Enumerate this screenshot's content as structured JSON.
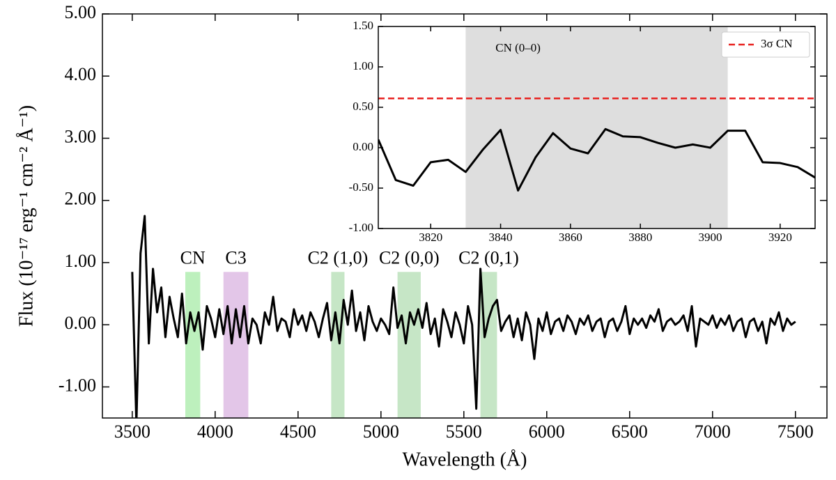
{
  "chart_data": [
    {
      "type": "line",
      "xlabel": "Wavelength (Å)",
      "ylabel": "Flux (10⁻¹⁷ erg⁻¹ cm⁻² Å⁻¹)",
      "xlim": [
        3320,
        7690
      ],
      "ylim": [
        -1.5,
        5.0
      ],
      "xticks": [
        3500,
        4000,
        4500,
        5000,
        5500,
        6000,
        6500,
        7000,
        7500
      ],
      "yticks": [
        {
          "value": -1,
          "label": "-1.00"
        },
        {
          "value": 0,
          "label": "0.00"
        },
        {
          "value": 1,
          "label": "1.00"
        },
        {
          "value": 2,
          "label": "2.00"
        },
        {
          "value": 3,
          "label": "3.00"
        },
        {
          "value": 4,
          "label": "4.00"
        },
        {
          "value": 5,
          "label": "5.00"
        }
      ],
      "bands": [
        {
          "label": "CN",
          "start": 3820,
          "end": 3910,
          "top": 0.85,
          "color": "#bdf0bd",
          "label_color": "#55d455"
        },
        {
          "label": "C3",
          "start": 4050,
          "end": 4200,
          "top": 0.85,
          "color": "#e3c6e8",
          "label_color": "#7a1a7a"
        },
        {
          "label": "C2 (1,0)",
          "start": 4700,
          "end": 4780,
          "top": 0.85,
          "color": "#c6e6c6",
          "label_color": "#1f7f1f"
        },
        {
          "label": "C2 (0,0)",
          "start": 5100,
          "end": 5240,
          "top": 0.85,
          "color": "#c6e6c6",
          "label_color": "#1f7f1f"
        },
        {
          "label": "C2 (0,1)",
          "start": 5600,
          "end": 5700,
          "top": 0.85,
          "color": "#c6e6c6",
          "label_color": "#1f7f1f"
        }
      ],
      "x": [
        3500,
        3525,
        3550,
        3575,
        3600,
        3625,
        3650,
        3675,
        3700,
        3725,
        3750,
        3775,
        3800,
        3825,
        3850,
        3875,
        3900,
        3925,
        3950,
        3975,
        4000,
        4025,
        4050,
        4075,
        4100,
        4125,
        4150,
        4175,
        4200,
        4225,
        4250,
        4275,
        4300,
        4325,
        4350,
        4375,
        4400,
        4425,
        4450,
        4475,
        4500,
        4525,
        4550,
        4575,
        4600,
        4625,
        4650,
        4675,
        4700,
        4725,
        4750,
        4775,
        4800,
        4825,
        4850,
        4875,
        4900,
        4925,
        4950,
        4975,
        5000,
        5025,
        5050,
        5075,
        5100,
        5125,
        5150,
        5175,
        5200,
        5225,
        5250,
        5275,
        5300,
        5325,
        5350,
        5375,
        5400,
        5425,
        5450,
        5475,
        5500,
        5525,
        5550,
        5575,
        5600,
        5625,
        5650,
        5675,
        5700,
        5725,
        5750,
        5775,
        5800,
        5825,
        5850,
        5875,
        5900,
        5925,
        5950,
        5975,
        6000,
        6025,
        6050,
        6075,
        6100,
        6125,
        6150,
        6175,
        6200,
        6225,
        6250,
        6275,
        6300,
        6325,
        6350,
        6375,
        6400,
        6425,
        6450,
        6475,
        6500,
        6525,
        6550,
        6575,
        6600,
        6625,
        6650,
        6675,
        6700,
        6725,
        6750,
        6775,
        6800,
        6825,
        6850,
        6875,
        6900,
        6925,
        6950,
        6975,
        7000,
        7025,
        7050,
        7075,
        7100,
        7125,
        7150,
        7175,
        7200,
        7225,
        7250,
        7275,
        7300,
        7325,
        7350,
        7375,
        7400,
        7425,
        7450,
        7475,
        7500
      ],
      "series": [
        {
          "color": "#000000",
          "values": [
            0.85,
            -1.6,
            1.15,
            1.75,
            -0.3,
            0.9,
            0.2,
            0.6,
            -0.2,
            0.45,
            0.1,
            -0.2,
            0.5,
            -0.3,
            0.2,
            -0.1,
            0.2,
            -0.4,
            0.3,
            0.1,
            -0.2,
            0.25,
            -0.15,
            0.3,
            -0.3,
            0.25,
            -0.2,
            0.3,
            -0.3,
            0.1,
            0.0,
            -0.3,
            0.2,
            0.0,
            0.45,
            -0.1,
            0.1,
            0.05,
            -0.2,
            0.25,
            0.0,
            0.15,
            -0.1,
            0.2,
            0.05,
            -0.2,
            0.1,
            0.35,
            -0.25,
            0.2,
            -0.3,
            0.4,
            0.0,
            0.55,
            -0.1,
            0.2,
            -0.25,
            0.3,
            0.05,
            -0.1,
            0.1,
            0.0,
            -0.15,
            0.6,
            -0.05,
            0.15,
            -0.3,
            0.2,
            0.0,
            0.25,
            -0.05,
            0.35,
            -0.15,
            0.1,
            -0.35,
            0.25,
            0.05,
            -0.2,
            0.2,
            0.0,
            -0.3,
            0.3,
            0.0,
            -1.35,
            0.9,
            -0.2,
            0.1,
            0.3,
            0.4,
            -0.1,
            0.05,
            0.15,
            -0.2,
            0.1,
            -0.25,
            0.2,
            0.0,
            -0.55,
            0.1,
            -0.1,
            0.2,
            -0.15,
            0.05,
            0.1,
            -0.1,
            0.15,
            0.05,
            -0.15,
            0.1,
            0.0,
            0.15,
            -0.1,
            0.05,
            0.1,
            -0.2,
            0.05,
            0.1,
            -0.1,
            0.05,
            0.3,
            -0.15,
            0.1,
            0.0,
            0.1,
            -0.05,
            0.15,
            0.05,
            0.25,
            -0.1,
            0.05,
            0.1,
            0.0,
            0.05,
            0.15,
            -0.1,
            0.3,
            -0.35,
            0.1,
            0.05,
            0.0,
            0.15,
            -0.05,
            0.1,
            0.0,
            0.15,
            -0.1,
            0.05,
            0.1,
            -0.2,
            0.05,
            0.1,
            -0.1,
            0.05,
            -0.3,
            0.1,
            0.0,
            0.2,
            -0.1,
            0.1,
            0.0,
            0.05
          ]
        }
      ]
    },
    {
      "type": "line",
      "xlim": [
        3805,
        3930
      ],
      "ylim": [
        -1.0,
        1.5
      ],
      "xticks": [
        3820,
        3840,
        3860,
        3880,
        3900,
        3920
      ],
      "yticks": [
        {
          "value": -1,
          "label": "-1.00"
        },
        {
          "value": -0.5,
          "label": "-0.50"
        },
        {
          "value": 0,
          "label": "0.00"
        },
        {
          "value": 0.5,
          "label": "0.50"
        },
        {
          "value": 1,
          "label": "1.00"
        },
        {
          "value": 1.5,
          "label": "1.50"
        }
      ],
      "span": {
        "label": "CN (0–0)",
        "start": 3830,
        "end": 3905,
        "color": "#dedede",
        "label_color": "#1a1acc"
      },
      "hline": {
        "name": "3σ CN",
        "value": 0.61,
        "color": "#e8211f"
      },
      "legend": "upper right",
      "x": [
        3805,
        3810,
        3815,
        3820,
        3825,
        3830,
        3835,
        3840,
        3845,
        3850,
        3855,
        3860,
        3865,
        3870,
        3875,
        3880,
        3885,
        3890,
        3895,
        3900,
        3905,
        3910,
        3915,
        3920,
        3925,
        3930
      ],
      "series": [
        {
          "color": "#000000",
          "values": [
            0.1,
            -0.4,
            -0.47,
            -0.18,
            -0.15,
            -0.3,
            -0.02,
            0.22,
            -0.53,
            -0.12,
            0.18,
            -0.01,
            -0.07,
            0.23,
            0.14,
            0.13,
            0.06,
            0.0,
            0.04,
            0.0,
            0.21,
            0.21,
            -0.18,
            -0.19,
            -0.24,
            -0.37
          ]
        }
      ]
    }
  ]
}
